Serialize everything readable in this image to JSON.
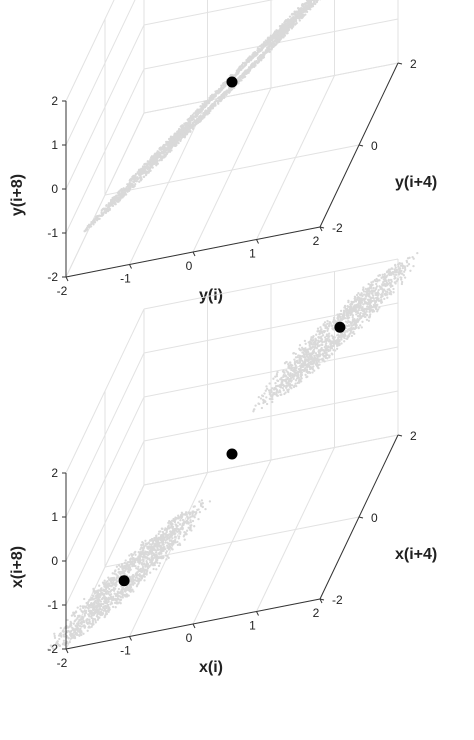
{
  "chart_data": [
    {
      "type": "scatter",
      "dimensions": 3,
      "xlabel": "y(i)",
      "ylabel": "y(i+4)",
      "zlabel": "y(i+8)",
      "xlim": [
        -2,
        2
      ],
      "ylim": [
        -2,
        2
      ],
      "zlim": [
        -2,
        2
      ],
      "xticks": [
        "-2",
        "-1",
        "0",
        "1",
        "2"
      ],
      "yticks": [
        "-2",
        "0",
        "2"
      ],
      "zticks": [
        "-2",
        "-1",
        "0",
        "1",
        "2"
      ],
      "grid": true,
      "point_color": "#d9d9d9",
      "highlight_color": "#000000",
      "attractor": "diffuse toroidal cloud centered at origin, range approximately -2 to 2 on all axes",
      "highlight_points": [
        [
          0.0,
          0.0,
          0.0
        ]
      ]
    },
    {
      "type": "scatter",
      "dimensions": 3,
      "xlabel": "x(i)",
      "ylabel": "x(i+4)",
      "zlabel": "x(i+8)",
      "xlim": [
        -2,
        2
      ],
      "ylim": [
        -2,
        2
      ],
      "zlim": [
        -2,
        2
      ],
      "xticks": [
        "-2",
        "-1",
        "0",
        "1",
        "2"
      ],
      "yticks": [
        "-2",
        "0",
        "2"
      ],
      "zticks": [
        "-2",
        "-1",
        "0",
        "1",
        "2"
      ],
      "grid": true,
      "point_color": "#d9d9d9",
      "highlight_color": "#000000",
      "attractor": "double-lobe ring structure along the diagonal, lobes centered near (-1.3,-1.3,-1.3) and (1.3,1.3,1.3)",
      "highlight_points": [
        [
          -1.3,
          -1.3,
          -1.3
        ],
        [
          0.0,
          0.0,
          0.0
        ],
        [
          1.3,
          1.3,
          1.3
        ]
      ]
    }
  ]
}
